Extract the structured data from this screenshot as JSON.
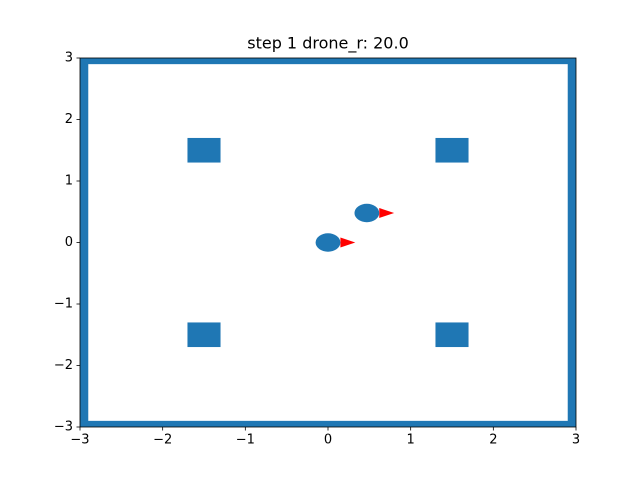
{
  "chart_data": {
    "type": "scene",
    "title": "step 1 drone_r: 20.0",
    "xlim": [
      -3,
      3
    ],
    "ylim": [
      -3,
      3
    ],
    "xticks": [
      {
        "value": -3,
        "label": "−3"
      },
      {
        "value": -2,
        "label": "−2"
      },
      {
        "value": -1,
        "label": "−1"
      },
      0,
      1,
      2,
      3
    ],
    "yticks": [
      {
        "value": -3,
        "label": "−3"
      },
      {
        "value": -2,
        "label": "−2"
      },
      {
        "value": -1,
        "label": "−1"
      },
      0,
      1,
      2,
      3
    ],
    "color": "#1f77b4",
    "arrow_color": "#ff0000",
    "walls": {
      "x": [
        -3,
        2.9,
        -3,
        -3
      ],
      "y": [
        -3,
        -3,
        -3,
        2.9
      ],
      "width": [
        0.1,
        0.1,
        6,
        6
      ],
      "height": [
        6,
        6,
        0.1,
        0.1
      ]
    },
    "obstacles": {
      "x": [
        -1.5,
        1.5,
        -1.5,
        1.5
      ],
      "y": [
        1.5,
        1.5,
        -1.5,
        -1.5
      ],
      "size": 0.4
    },
    "drones": {
      "x": [
        0,
        0.47
      ],
      "y": [
        0,
        0.48
      ],
      "radius": 0.15,
      "heading": [
        0,
        0
      ],
      "arrow_length": 0.18
    }
  }
}
